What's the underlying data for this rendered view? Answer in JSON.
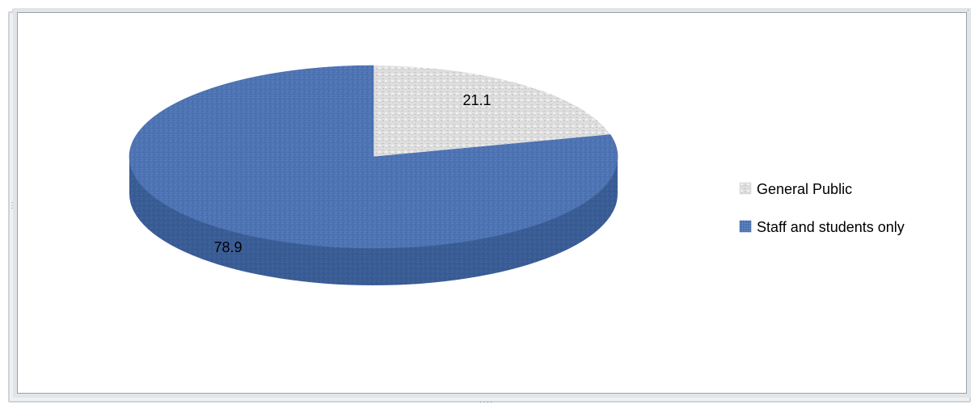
{
  "chart_data": {
    "type": "pie",
    "title": "",
    "categories": [
      "General Public",
      "Staff and students only"
    ],
    "values": [
      21.1,
      78.9
    ],
    "data_labels": [
      "21.1",
      "78.9"
    ],
    "colors": [
      "#dcdcdc",
      "#4f74b3"
    ],
    "three_d": true,
    "legend": {
      "placement": "right",
      "entries": [
        "General Public",
        "Staff and students only"
      ]
    }
  }
}
